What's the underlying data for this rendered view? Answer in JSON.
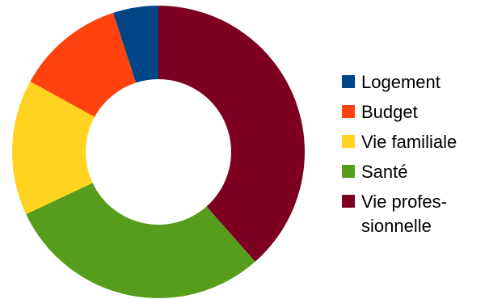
{
  "chart_data": {
    "type": "pie",
    "variant": "donut",
    "title": "",
    "start_angle_deg": 0,
    "direction": "clockwise-from-top",
    "categories": [
      "Vie professionnelle",
      "Santé",
      "Vie familiale",
      "Budget",
      "Logement"
    ],
    "values": [
      38.5,
      29.5,
      15,
      12,
      5
    ],
    "colors": [
      "#7e0021",
      "#579d1c",
      "#ffd320",
      "#ff420e",
      "#004586"
    ],
    "legend": {
      "position": "right",
      "items": [
        {
          "key": "logement",
          "color": "#004586",
          "lines": [
            "Logement"
          ]
        },
        {
          "key": "budget",
          "color": "#ff420e",
          "lines": [
            "Budget"
          ]
        },
        {
          "key": "vie-familiale",
          "color": "#ffd320",
          "lines": [
            "Vie familiale"
          ]
        },
        {
          "key": "sante",
          "color": "#579d1c",
          "lines": [
            "Santé"
          ]
        },
        {
          "key": "vie-professionnelle",
          "color": "#7e0021",
          "lines": [
            "Vie profes-",
            "sionnelle"
          ]
        }
      ]
    }
  }
}
